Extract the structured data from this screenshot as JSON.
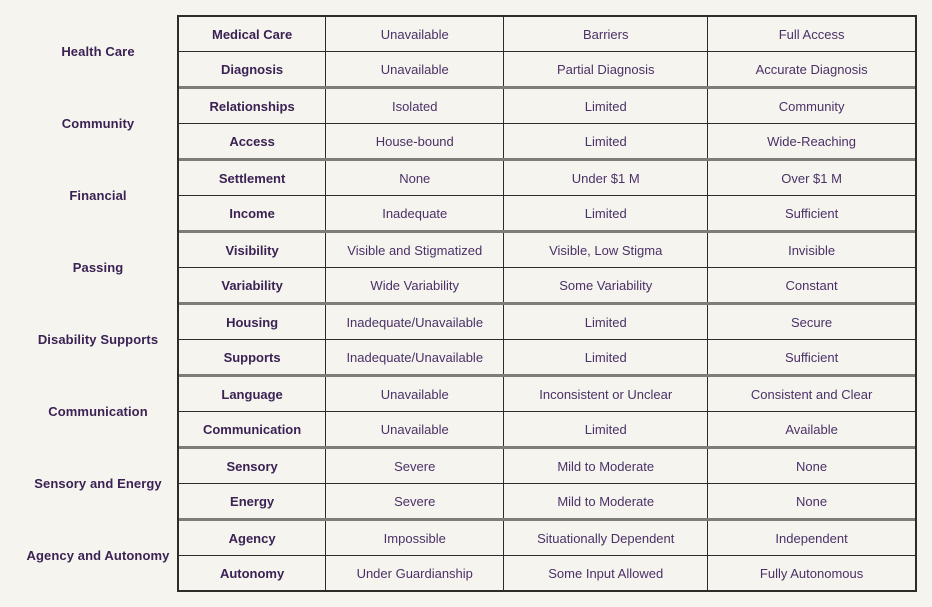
{
  "page": {
    "background": "#f5f4ee",
    "label_color": "#3b2254",
    "value_color": "#4b3167",
    "border_dark": "#2e2c28",
    "group_divider_gray": "#7e7d76"
  },
  "chart_data": {
    "type": "table",
    "title": "",
    "layout": "8 category groups, each with 2 attribute rows and 3 level columns (worst to best)",
    "column_roles": [
      "attribute",
      "lowest-level",
      "middle-level",
      "highest-level"
    ],
    "groups": [
      {
        "category": "Health Care",
        "rows": [
          {
            "label": "Medical Care",
            "values": [
              "Unavailable",
              "Barriers",
              "Full Access"
            ]
          },
          {
            "label": "Diagnosis",
            "values": [
              "Unavailable",
              "Partial Diagnosis",
              "Accurate Diagnosis"
            ]
          }
        ]
      },
      {
        "category": "Community",
        "rows": [
          {
            "label": "Relationships",
            "values": [
              "Isolated",
              "Limited",
              "Community"
            ]
          },
          {
            "label": "Access",
            "values": [
              "House-bound",
              "Limited",
              "Wide-Reaching"
            ]
          }
        ]
      },
      {
        "category": "Financial",
        "rows": [
          {
            "label": "Settlement",
            "values": [
              "None",
              "Under $1 M",
              "Over $1 M"
            ]
          },
          {
            "label": "Income",
            "values": [
              "Inadequate",
              "Limited",
              "Sufficient"
            ]
          }
        ]
      },
      {
        "category": "Passing",
        "rows": [
          {
            "label": "Visibility",
            "values": [
              "Visible and Stigmatized",
              "Visible, Low Stigma",
              "Invisible"
            ]
          },
          {
            "label": "Variability",
            "values": [
              "Wide Variability",
              "Some Variability",
              "Constant"
            ]
          }
        ]
      },
      {
        "category": "Disability Supports",
        "rows": [
          {
            "label": "Housing",
            "values": [
              "Inadequate/Unavailable",
              "Limited",
              "Secure"
            ]
          },
          {
            "label": "Supports",
            "values": [
              "Inadequate/Unavailable",
              "Limited",
              "Sufficient"
            ]
          }
        ]
      },
      {
        "category": "Communication",
        "rows": [
          {
            "label": "Language",
            "values": [
              "Unavailable",
              "Inconsistent or Unclear",
              "Consistent and Clear"
            ]
          },
          {
            "label": "Communication",
            "values": [
              "Unavailable",
              "Limited",
              "Available"
            ]
          }
        ]
      },
      {
        "category": "Sensory and Energy",
        "rows": [
          {
            "label": "Sensory",
            "values": [
              "Severe",
              "Mild to Moderate",
              "None"
            ]
          },
          {
            "label": "Energy",
            "values": [
              "Severe",
              "Mild to Moderate",
              "None"
            ]
          }
        ]
      },
      {
        "category": "Agency and Autonomy",
        "rows": [
          {
            "label": "Agency",
            "values": [
              "Impossible",
              "Situationally Dependent",
              "Independent"
            ]
          },
          {
            "label": "Autonomy",
            "values": [
              "Under Guardianship",
              "Some Input Allowed",
              "Fully Autonomous"
            ]
          }
        ]
      }
    ]
  }
}
